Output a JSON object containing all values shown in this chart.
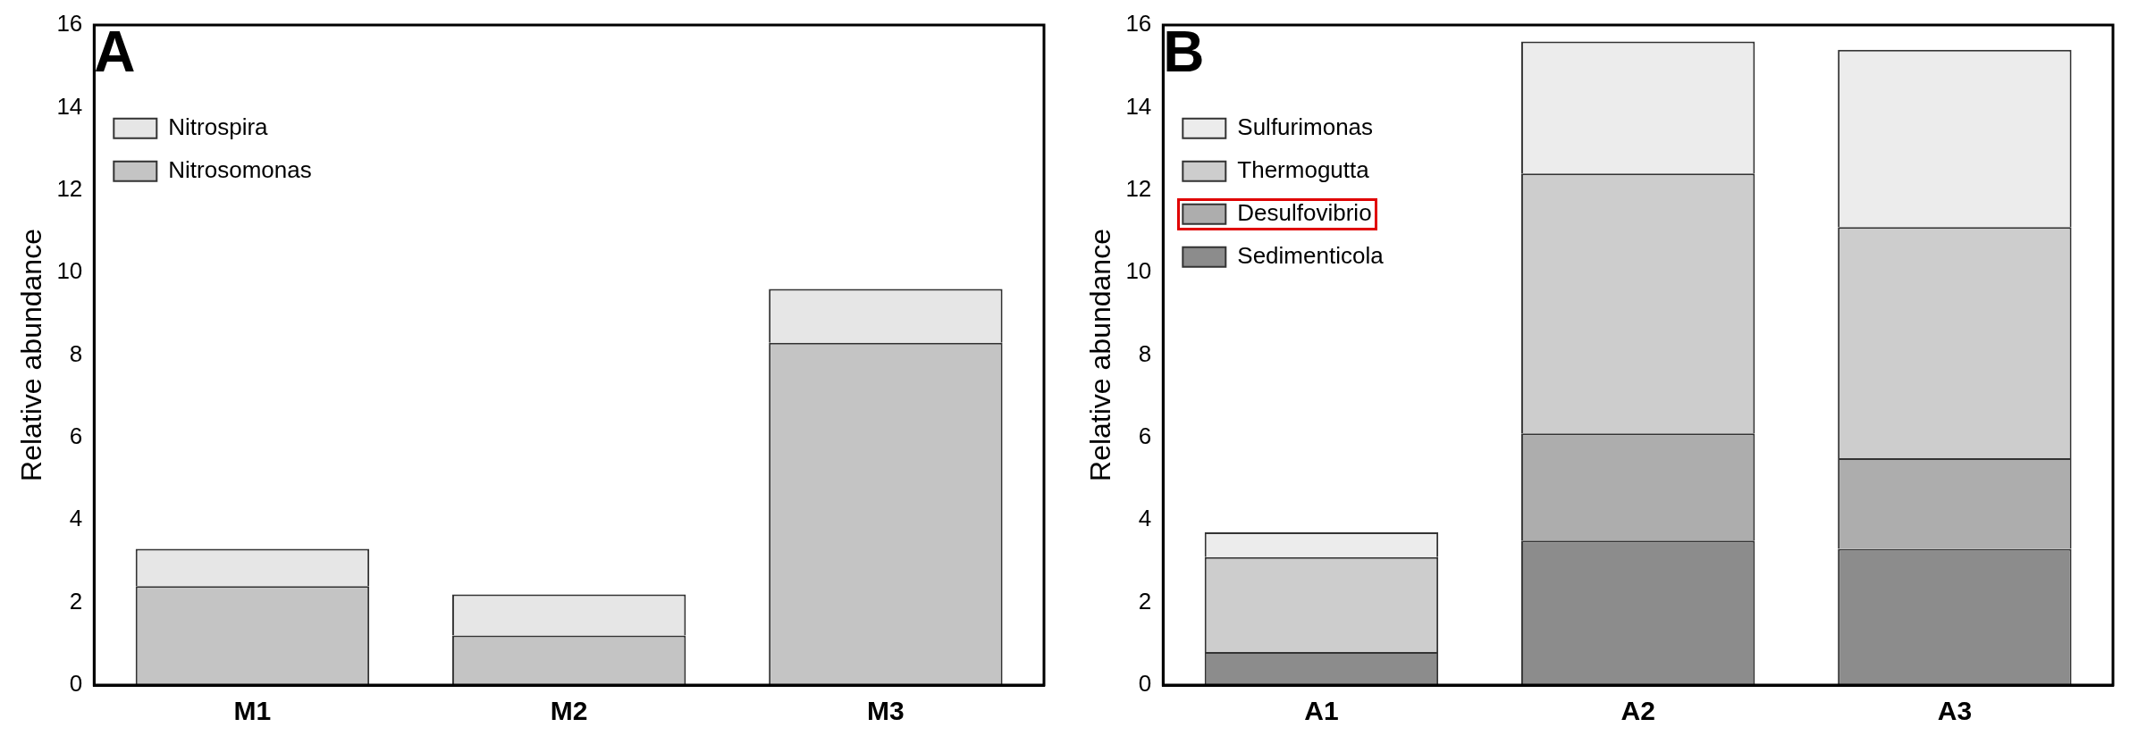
{
  "chart_data": [
    {
      "type": "bar",
      "title": "A",
      "ylabel": "Relative abundance",
      "categories": [
        "M1",
        "M2",
        "M3"
      ],
      "stacked": true,
      "legend": "top left",
      "grid": false,
      "ylim": [
        0,
        16
      ],
      "yticks": [
        0,
        2,
        4,
        6,
        8,
        10,
        12,
        14,
        16
      ],
      "series": [
        {
          "name": "Nitrosomonas",
          "color": "#c4c4c4",
          "values": [
            2.4,
            1.2,
            8.3
          ]
        },
        {
          "name": "Nitrospira",
          "color": "#e6e6e6",
          "values": [
            0.9,
            1.0,
            1.3
          ]
        }
      ]
    },
    {
      "type": "bar",
      "title": "B",
      "ylabel": "Relative abundance",
      "categories": [
        "A1",
        "A2",
        "A3"
      ],
      "stacked": true,
      "legend": "top left",
      "grid": false,
      "ylim": [
        0,
        16
      ],
      "yticks": [
        0,
        2,
        4,
        6,
        8,
        10,
        12,
        14,
        16
      ],
      "series": [
        {
          "name": "Sedimenticola",
          "color": "#8c8c8c",
          "values": [
            0.8,
            3.5,
            3.3
          ]
        },
        {
          "name": "Desulfovibrio",
          "color": "#adadad",
          "values": [
            0,
            2.6,
            2.2
          ]
        },
        {
          "name": "Thermogutta",
          "color": "#cdcdcd",
          "values": [
            2.3,
            6.3,
            5.6
          ]
        },
        {
          "name": "Sulfurimonas",
          "color": "#ececec",
          "values": [
            0.6,
            3.2,
            4.3
          ]
        }
      ]
    }
  ]
}
